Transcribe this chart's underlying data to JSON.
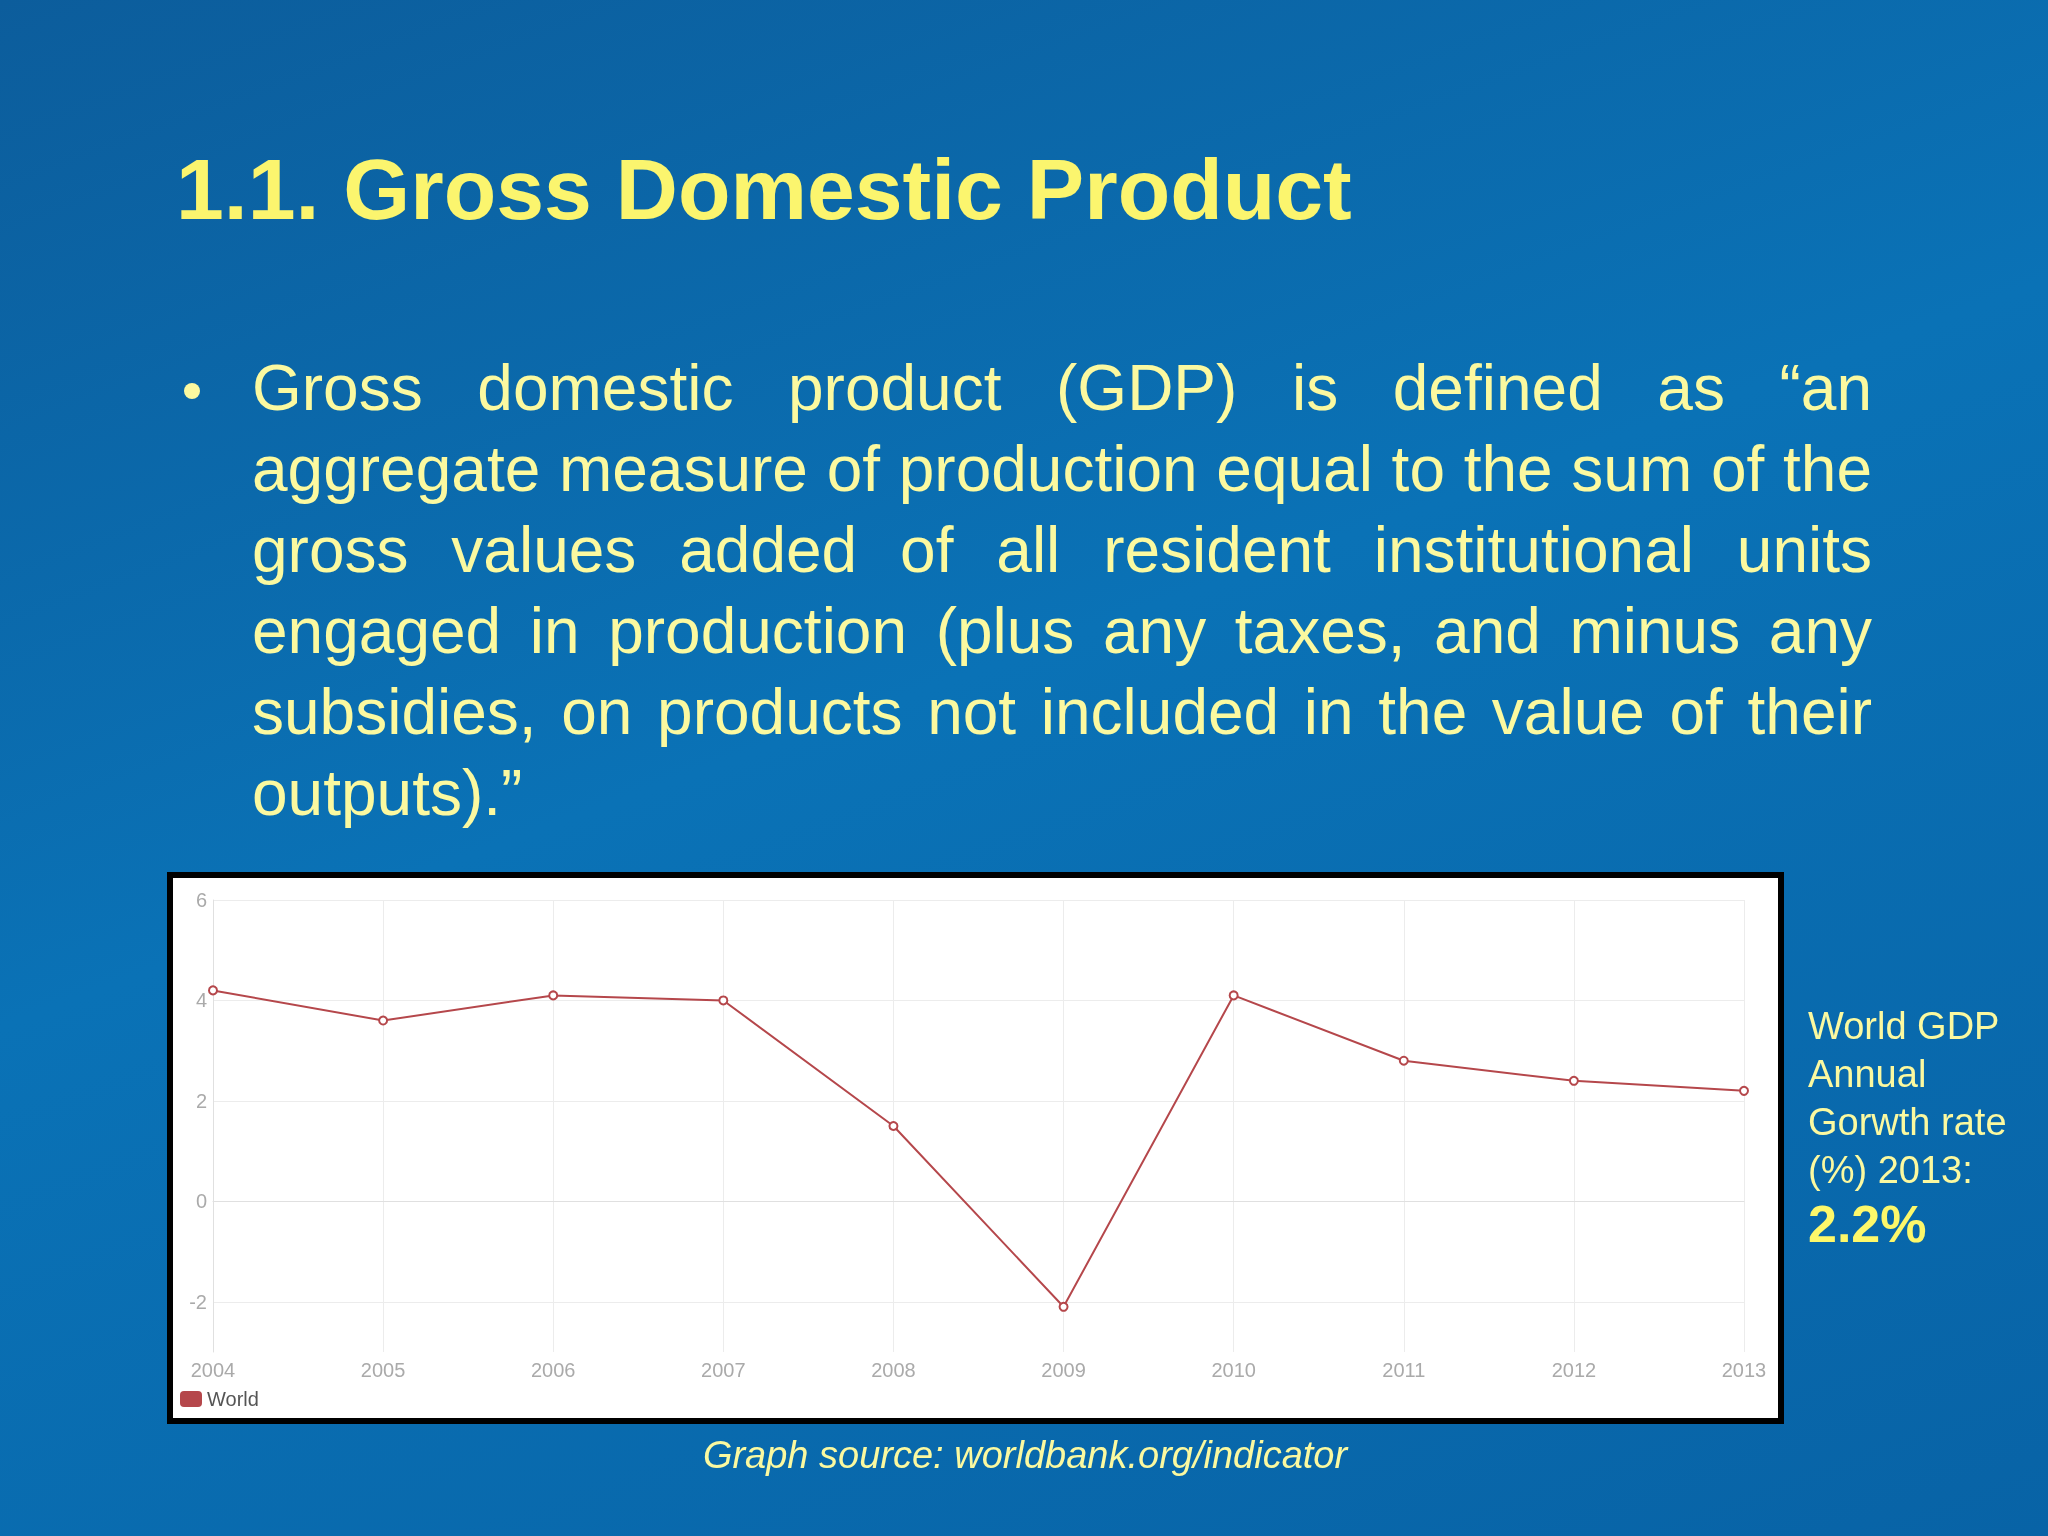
{
  "chart_data": {
    "type": "line",
    "title": "1.1. Gross Domestic Product",
    "subtitle": "Gross domestic product (GDP) is defined as “an aggregate measure of production equal to the sum of the gross values added of all resident institutional units engaged in production (plus any taxes, and minus any subsidies, on products not included in the value of their outputs).”",
    "categories": [
      "2004",
      "2005",
      "2006",
      "2007",
      "2008",
      "2009",
      "2010",
      "2011",
      "2012",
      "2013"
    ],
    "series": [
      {
        "name": "World",
        "color": "#b5474b",
        "values": [
          4.2,
          3.6,
          4.1,
          4.0,
          1.5,
          -2.1,
          4.1,
          2.8,
          2.4,
          2.2
        ]
      }
    ],
    "ylim": [
      -3,
      6
    ],
    "yticks": [
      -2,
      0,
      2,
      4,
      6
    ],
    "grid": true,
    "legend": "bottom left",
    "marker": "circle",
    "line_style": "solid",
    "annotations": [
      "World GDP Annual Gorwth rate (%) 2013:",
      "2.2%",
      "Graph source: worldbank.org/indicator"
    ]
  }
}
